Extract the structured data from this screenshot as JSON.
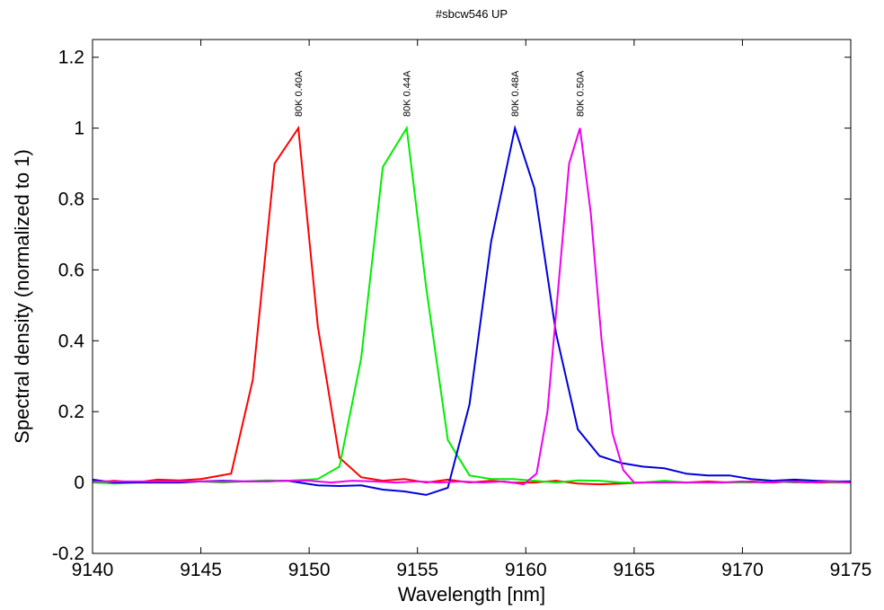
{
  "chart_data": {
    "type": "line",
    "title": "#sbcw546 UP",
    "xlabel": "Wavelength [nm]",
    "ylabel": "Spectral density (normalized to 1)",
    "xlim": [
      9140,
      9175
    ],
    "ylim": [
      -0.2,
      1.25
    ],
    "xticks": [
      9140,
      9145,
      9150,
      9155,
      9160,
      9165,
      9170,
      9175
    ],
    "xtick_labels": [
      "9140",
      "9145",
      "9150",
      "9155",
      "9160",
      "9165",
      "9170",
      "9175"
    ],
    "yticks": [
      -0.2,
      0,
      0.2,
      0.4,
      0.6,
      0.8,
      1,
      1.2
    ],
    "ytick_labels": [
      "-0.2",
      "0",
      "0.2",
      "0.4",
      "0.6",
      "0.8",
      "1",
      "1.2"
    ],
    "grid": false,
    "legend": "none",
    "series": [
      {
        "label": "80K 0.40A",
        "color": "#ff0000",
        "peak_x": 9149.5,
        "x": [
          9140,
          9141,
          9142,
          9143,
          9144,
          9145,
          9146.4,
          9147.4,
          9148.4,
          9149.5,
          9150.4,
          9151.4,
          9152.4,
          9153.4,
          9154.4,
          9155.4,
          9156.4,
          9157.4,
          9158.4,
          9159.4,
          9160.4,
          9161.4,
          9162.4,
          9163.4,
          9164.4,
          9165.4,
          9166.4,
          9167.4,
          9168.4,
          9169.4,
          9170.4,
          9171.4,
          9172.4,
          9173.4,
          9174.4,
          9175
        ],
        "y": [
          0.0,
          0.005,
          0.0,
          0.008,
          0.006,
          0.01,
          0.025,
          0.29,
          0.9,
          1.0,
          0.44,
          0.07,
          0.015,
          0.005,
          0.01,
          0.0,
          0.008,
          0.0,
          0.005,
          0.0,
          0.0,
          0.005,
          -0.003,
          -0.005,
          -0.003,
          0.0,
          0.003,
          0.0,
          0.003,
          0.0,
          0.003,
          0.0,
          0.003,
          0.0,
          0.0,
          0.0
        ]
      },
      {
        "label": "80K 0.44A",
        "color": "#00ee00",
        "peak_x": 9154.5,
        "x": [
          9140,
          9141,
          9142,
          9143,
          9144,
          9145,
          9146,
          9147,
          9148,
          9149,
          9150.4,
          9151.4,
          9152.4,
          9153.4,
          9154.5,
          9155.4,
          9156.4,
          9157.4,
          9158.4,
          9159.4,
          9160.4,
          9161.4,
          9162.4,
          9163.4,
          9164.4,
          9165.4,
          9166.4,
          9167.4,
          9168.4,
          9169.4,
          9170.4,
          9171.4,
          9172.4,
          9173.4,
          9174.4,
          9175
        ],
        "y": [
          0.0,
          -0.003,
          0.0,
          0.003,
          0.0,
          0.003,
          0.0,
          0.003,
          0.006,
          0.005,
          0.01,
          0.045,
          0.35,
          0.89,
          1.0,
          0.55,
          0.12,
          0.02,
          0.01,
          0.01,
          0.005,
          0.0,
          0.006,
          0.005,
          0.0,
          0.0,
          0.005,
          0.0,
          0.0,
          0.0,
          0.0,
          0.003,
          0.0,
          0.003,
          0.0,
          0.0
        ]
      },
      {
        "label": "80K 0.48A",
        "color": "#0000dd",
        "peak_x": 9159.5,
        "x": [
          9140,
          9141,
          9142,
          9143,
          9144,
          9145,
          9146,
          9147,
          9148,
          9149,
          9150.4,
          9151.4,
          9152.4,
          9153.4,
          9154.4,
          9155.4,
          9156.4,
          9157.4,
          9158.4,
          9159.5,
          9160.4,
          9161.4,
          9162.4,
          9163.4,
          9164.4,
          9165.4,
          9166.4,
          9167.4,
          9168.4,
          9169.4,
          9170.4,
          9171.4,
          9172.4,
          9173.4,
          9174.4,
          9175
        ],
        "y": [
          0.008,
          0.0,
          0.0,
          0.0,
          0.0,
          0.003,
          0.005,
          0.003,
          0.003,
          0.005,
          -0.008,
          -0.01,
          -0.008,
          -0.02,
          -0.025,
          -0.035,
          -0.015,
          0.22,
          0.68,
          1.0,
          0.83,
          0.42,
          0.15,
          0.075,
          0.055,
          0.045,
          0.04,
          0.025,
          0.02,
          0.02,
          0.01,
          0.005,
          0.008,
          0.005,
          0.003,
          0.003
        ]
      },
      {
        "label": "80K 0.50A",
        "color": "#ee00ee",
        "peak_x": 9162.5,
        "x": [
          9140,
          9141,
          9142,
          9143,
          9144,
          9145,
          9146,
          9147,
          9148,
          9149,
          9150,
          9151,
          9152,
          9153,
          9154,
          9155,
          9156,
          9157,
          9158,
          9159,
          9159.9,
          9160.5,
          9161,
          9162,
          9162.5,
          9163,
          9163.5,
          9164,
          9164.5,
          9165,
          9166,
          9167,
          9168,
          9169,
          9170,
          9171,
          9172,
          9173,
          9174,
          9175
        ],
        "y": [
          0.003,
          0.003,
          0.003,
          0.003,
          0.003,
          0.003,
          0.003,
          0.003,
          0.003,
          0.005,
          0.005,
          0.0,
          0.005,
          0.003,
          0.0,
          0.003,
          0.0,
          0.003,
          0.0,
          0.003,
          -0.005,
          0.025,
          0.2,
          0.9,
          1.0,
          0.76,
          0.4,
          0.14,
          0.035,
          0.0,
          0.0,
          0.0,
          0.0,
          0.0,
          0.003,
          0.0,
          0.003,
          0.0,
          0.003,
          0.0
        ]
      }
    ]
  }
}
